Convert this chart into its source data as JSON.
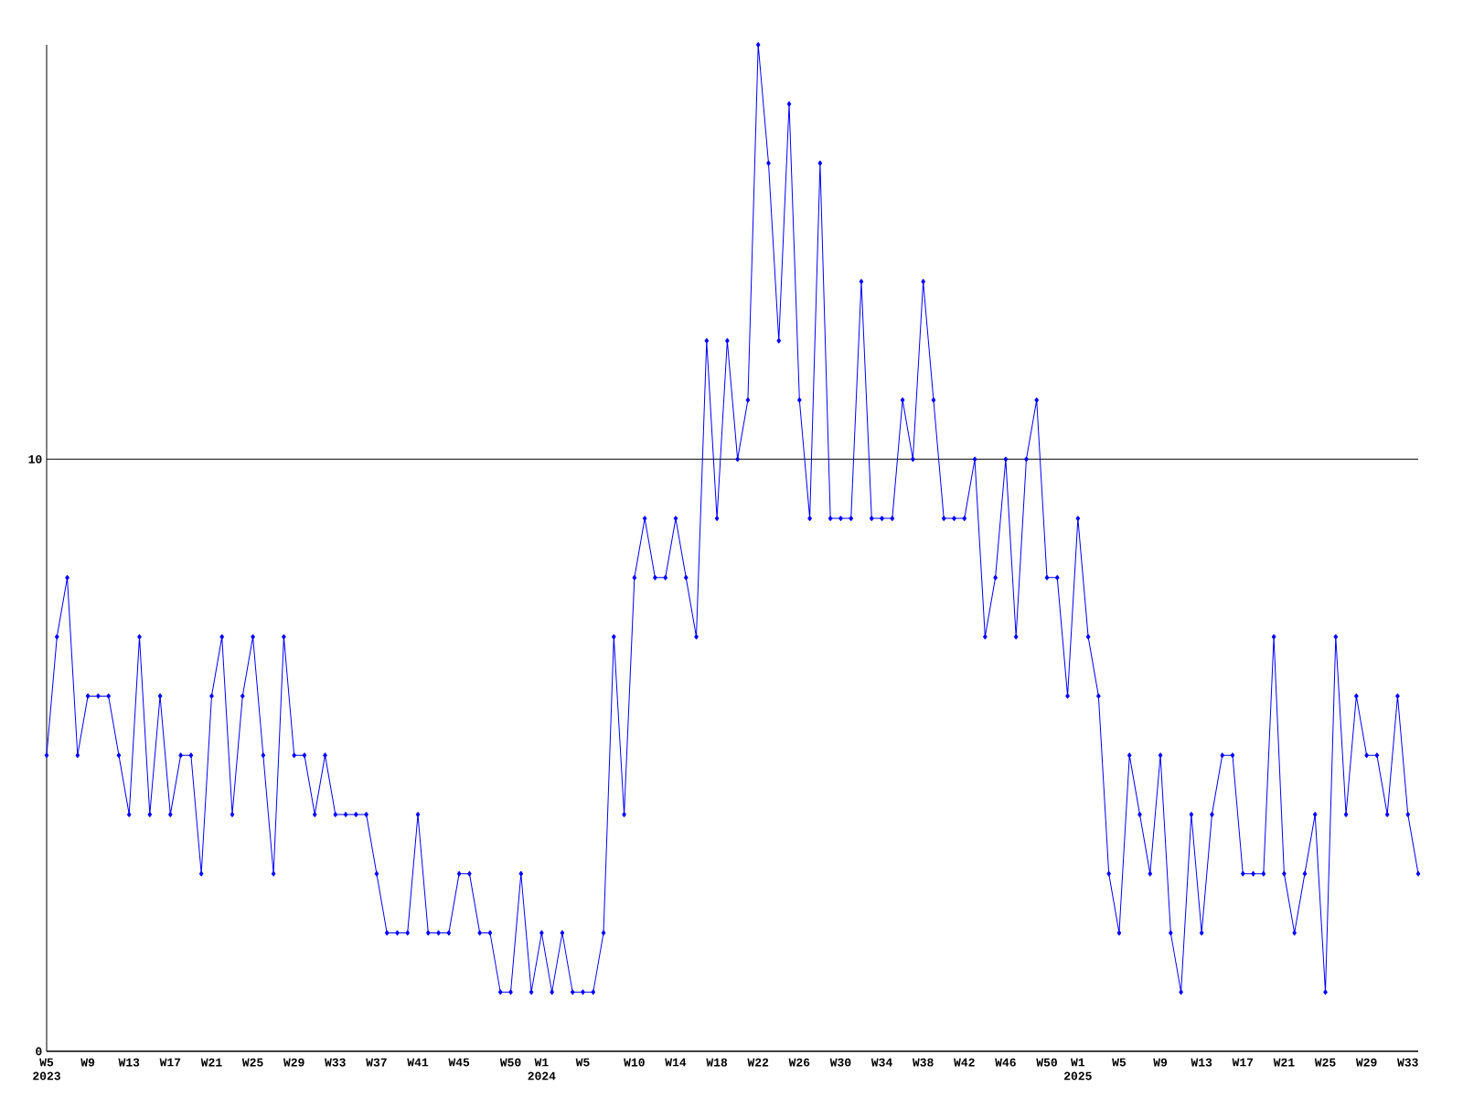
{
  "chart_data": {
    "type": "line",
    "categories": [
      "W5 2023",
      null,
      null,
      null,
      "W9",
      null,
      null,
      null,
      "W13",
      null,
      null,
      null,
      "W17",
      null,
      null,
      null,
      "W21",
      null,
      null,
      null,
      "W25",
      null,
      null,
      null,
      "W29",
      null,
      null,
      null,
      "W33",
      null,
      null,
      null,
      "W37",
      null,
      null,
      null,
      "W41",
      null,
      null,
      null,
      "W45",
      null,
      null,
      null,
      null,
      "W50",
      null,
      null,
      "W1 2024",
      null,
      null,
      null,
      "W5",
      null,
      null,
      null,
      null,
      "W10",
      null,
      null,
      null,
      "W14",
      null,
      null,
      null,
      "W18",
      null,
      null,
      null,
      "W22",
      null,
      null,
      null,
      "W26",
      null,
      null,
      null,
      "W30",
      null,
      null,
      null,
      "W34",
      null,
      null,
      null,
      "W38",
      null,
      null,
      null,
      "W42",
      null,
      null,
      null,
      "W46",
      null,
      null,
      null,
      "W50",
      null,
      null,
      "W1 2025",
      null,
      null,
      null,
      "W5",
      null,
      null,
      null,
      "W9",
      null,
      null,
      null,
      "W13",
      null,
      null,
      null,
      "W17",
      null,
      null,
      null,
      "W21",
      null,
      null,
      null,
      "W25",
      null,
      null,
      null,
      "W29",
      null,
      null,
      null,
      "W33",
      null
    ],
    "values": [
      5,
      7,
      8,
      5,
      6,
      6,
      6,
      5,
      4,
      7,
      4,
      6,
      4,
      5,
      5,
      3,
      6,
      7,
      4,
      6,
      7,
      5,
      3,
      7,
      5,
      5,
      4,
      5,
      4,
      4,
      4,
      4,
      3,
      2,
      2,
      2,
      4,
      2,
      2,
      2,
      3,
      3,
      2,
      2,
      1,
      1,
      3,
      1,
      2,
      1,
      2,
      1,
      1,
      1,
      2,
      7,
      4,
      8,
      9,
      8,
      8,
      9,
      8,
      7,
      12,
      9,
      12,
      10,
      11,
      17,
      15,
      12,
      16,
      11,
      9,
      15,
      9,
      9,
      9,
      13,
      9,
      9,
      9,
      11,
      10,
      13,
      11,
      9,
      9,
      9,
      10,
      7,
      8,
      10,
      7,
      10,
      11,
      8,
      8,
      6,
      9,
      7,
      6,
      3,
      2,
      5,
      4,
      3,
      5,
      2,
      1,
      4,
      2,
      4,
      5,
      5,
      3,
      3,
      3,
      7,
      3,
      2,
      3,
      4,
      1,
      7,
      4,
      6,
      5,
      5,
      4,
      6,
      4,
      3
    ],
    "color": "#0000ff",
    "marker": "diamond",
    "line_style": "solid",
    "grid": "y",
    "ylim": [
      0,
      17
    ],
    "yticks": [
      0,
      10
    ]
  }
}
